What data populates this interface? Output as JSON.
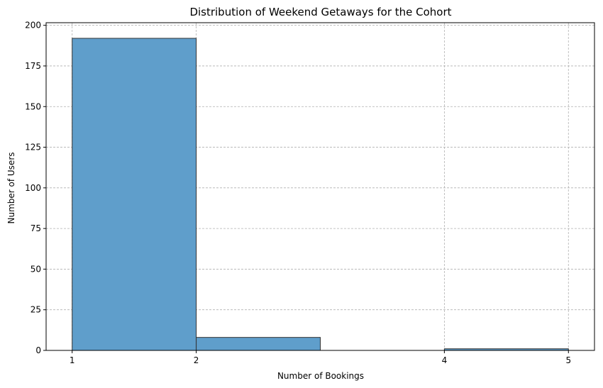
{
  "chart_data": {
    "type": "bar",
    "title": "Distribution of Weekend Getaways for the Cohort",
    "xlabel": "Number of Bookings",
    "ylabel": "Number of Users",
    "bins": [
      {
        "start": 1,
        "end": 2,
        "value": 192
      },
      {
        "start": 2,
        "end": 3,
        "value": 8
      },
      {
        "start": 3,
        "end": 4,
        "value": 0
      },
      {
        "start": 4,
        "end": 5,
        "value": 1
      }
    ],
    "xlim": [
      0.79,
      5.21
    ],
    "ylim": [
      0,
      201.6
    ],
    "xticks": [
      1,
      2,
      4,
      5
    ],
    "yticks": [
      0,
      25,
      50,
      75,
      100,
      125,
      150,
      175,
      200
    ],
    "grid": true,
    "bar_color": "#5f9ecb",
    "edge_color": "#333333"
  }
}
